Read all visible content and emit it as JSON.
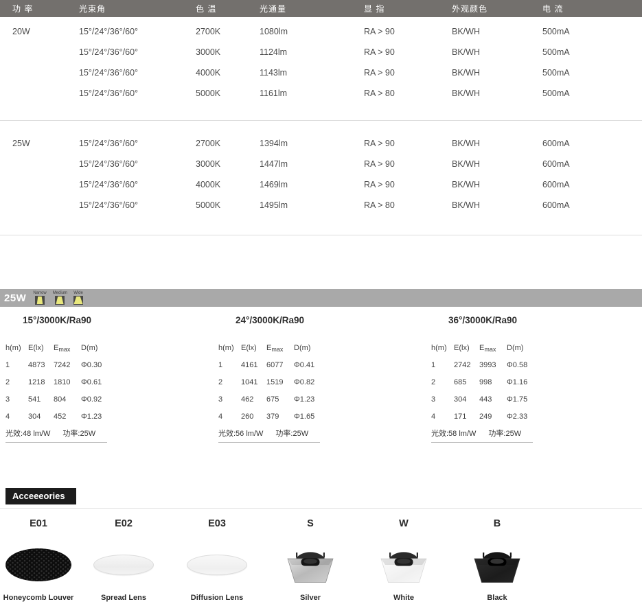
{
  "spec_table": {
    "headers": [
      "功 率",
      "光束角",
      "色 温",
      "光通量",
      "显 指",
      "外观颜色",
      "电 流"
    ],
    "groups": [
      {
        "power": "20W",
        "rows": [
          {
            "beam_angle": "15°/24°/36°/60°",
            "cct": "2700K",
            "flux": "1080lm",
            "cri": "RA > 90",
            "finish": "BK/WH",
            "current": "500mA"
          },
          {
            "beam_angle": "15°/24°/36°/60°",
            "cct": "3000K",
            "flux": "1124lm",
            "cri": "RA > 90",
            "finish": "BK/WH",
            "current": "500mA"
          },
          {
            "beam_angle": "15°/24°/36°/60°",
            "cct": "4000K",
            "flux": "1143lm",
            "cri": "RA > 90",
            "finish": "BK/WH",
            "current": "500mA"
          },
          {
            "beam_angle": "15°/24°/36°/60°",
            "cct": "5000K",
            "flux": "1161lm",
            "cri": "RA > 80",
            "finish": "BK/WH",
            "current": "500mA"
          }
        ]
      },
      {
        "power": "25W",
        "rows": [
          {
            "beam_angle": "15°/24°/36°/60°",
            "cct": "2700K",
            "flux": "1394lm",
            "cri": "RA > 90",
            "finish": "BK/WH",
            "current": "600mA"
          },
          {
            "beam_angle": "15°/24°/36°/60°",
            "cct": "3000K",
            "flux": "1447lm",
            "cri": "RA > 90",
            "finish": "BK/WH",
            "current": "600mA"
          },
          {
            "beam_angle": "15°/24°/36°/60°",
            "cct": "4000K",
            "flux": "1469lm",
            "cri": "RA > 90",
            "finish": "BK/WH",
            "current": "600mA"
          },
          {
            "beam_angle": "15°/24°/36°/60°",
            "cct": "5000K",
            "flux": "1495lm",
            "cri": "RA > 80",
            "finish": "BK/WH",
            "current": "600mA"
          }
        ]
      }
    ]
  },
  "beam_band": {
    "label": "25W",
    "beams": [
      {
        "name": "Narrow",
        "type": "narrow"
      },
      {
        "name": "Medium",
        "type": "medium"
      },
      {
        "name": "Wide",
        "type": "wide"
      }
    ]
  },
  "photometric_tables": [
    {
      "title": "15°/3000K/Ra90",
      "headers": [
        "h(m)",
        "E(lx)",
        "Emax",
        "D(m)"
      ],
      "rows": [
        [
          "1",
          "4873",
          "7242",
          "Φ0.30"
        ],
        [
          "2",
          "1218",
          "1810",
          "Φ0.61"
        ],
        [
          "3",
          "541",
          "804",
          "Φ0.92"
        ],
        [
          "4",
          "304",
          "452",
          "Φ1.23"
        ]
      ],
      "footer_left": "光效:48 lm/W",
      "footer_right": "功率:25W"
    },
    {
      "title": "24°/3000K/Ra90",
      "headers": [
        "h(m)",
        "E(lx)",
        "Emax",
        "D(m)"
      ],
      "rows": [
        [
          "1",
          "4161",
          "6077",
          "Φ0.41"
        ],
        [
          "2",
          "1041",
          "1519",
          "Φ0.82"
        ],
        [
          "3",
          "462",
          "675",
          "Φ1.23"
        ],
        [
          "4",
          "260",
          "379",
          "Φ1.65"
        ]
      ],
      "footer_left": "光效:56 lm/W",
      "footer_right": "功率:25W"
    },
    {
      "title": "36°/3000K/Ra90",
      "headers": [
        "h(m)",
        "E(lx)",
        "Emax",
        "D(m)"
      ],
      "rows": [
        [
          "1",
          "2742",
          "3993",
          "Φ0.58"
        ],
        [
          "2",
          "685",
          "998",
          "Φ1.16"
        ],
        [
          "3",
          "304",
          "443",
          "Φ1.75"
        ],
        [
          "4",
          "171",
          "249",
          "Φ2.33"
        ]
      ],
      "footer_left": "光效:58 lm/W",
      "footer_right": "功率:25W"
    }
  ],
  "accessories": {
    "title": "Acceeeories",
    "items": [
      {
        "code": "E01",
        "caption": "Honeycomb Louver",
        "type": "honeycomb"
      },
      {
        "code": "E02",
        "caption": "Spread Lens",
        "type": "lens-spread"
      },
      {
        "code": "E03",
        "caption": "Diffusion Lens",
        "type": "lens-diffusion"
      },
      {
        "code": "S",
        "caption": "Silver",
        "type": "trim-silver"
      },
      {
        "code": "W",
        "caption": "White",
        "type": "trim-white"
      },
      {
        "code": "B",
        "caption": "Black",
        "type": "trim-black"
      }
    ]
  },
  "colors": {
    "header_bar": "#73706d",
    "band_gray": "#a9a9a9",
    "badge_black": "#1c1c1c",
    "beam_yellow": "#e9e87d",
    "beam_square": "#4a4a46",
    "divider": "#dcdcdc",
    "text": "#4a4a4a"
  }
}
